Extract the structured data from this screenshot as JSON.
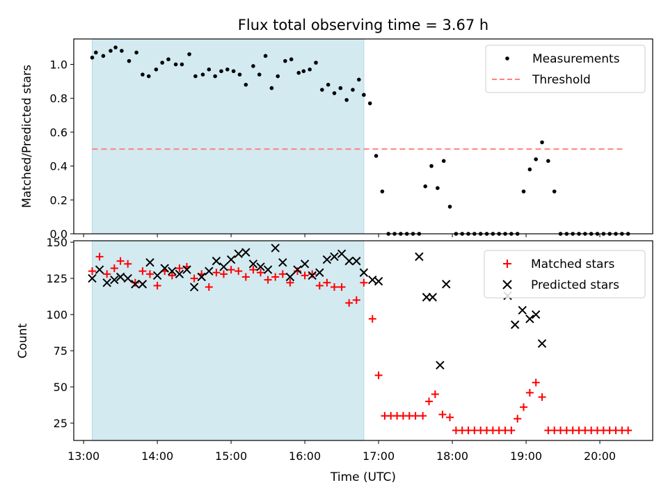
{
  "figure": {
    "title": "Flux total observing time = 3.67 h",
    "xlabel": "Time (UTC)"
  },
  "chart_data": [
    {
      "type": "scatter",
      "panel": "top",
      "ylabel": "Matched/Predicted stars",
      "xlim": [
        "12:52",
        "20:43"
      ],
      "ylim": [
        0.0,
        1.15
      ],
      "yticks": [
        0.0,
        0.2,
        0.4,
        0.6,
        0.8,
        1.0
      ],
      "xticks": [
        "13:00",
        "14:00",
        "15:00",
        "16:00",
        "17:00",
        "18:00",
        "19:00",
        "20:00"
      ],
      "observing_window": {
        "start": "13:07",
        "end": "16:48",
        "color": "#d3eaf1"
      },
      "legend": {
        "position": "top-right"
      },
      "series": [
        {
          "name": "Measurements",
          "color": "#000000",
          "marker": "dot",
          "x": [
            "13:07",
            "13:10",
            "13:16",
            "13:22",
            "13:26",
            "13:31",
            "13:37",
            "13:43",
            "13:48",
            "13:53",
            "13:59",
            "14:04",
            "14:09",
            "14:15",
            "14:20",
            "14:26",
            "14:31",
            "14:37",
            "14:42",
            "14:47",
            "14:52",
            "14:57",
            "15:02",
            "15:07",
            "15:12",
            "15:18",
            "15:23",
            "15:28",
            "15:33",
            "15:38",
            "15:44",
            "15:49",
            "15:55",
            "15:59",
            "16:04",
            "16:09",
            "16:14",
            "16:19",
            "16:24",
            "16:29",
            "16:34",
            "16:39",
            "16:44",
            "16:48",
            "16:53",
            "16:58",
            "17:03",
            "17:08",
            "17:13",
            "17:18",
            "17:23",
            "17:28",
            "17:33",
            "17:38",
            "17:43",
            "17:48",
            "17:53",
            "17:58",
            "18:03",
            "18:08",
            "18:13",
            "18:18",
            "18:23",
            "18:28",
            "18:33",
            "18:38",
            "18:43",
            "18:48",
            "18:53",
            "18:58",
            "19:03",
            "19:08",
            "19:13",
            "19:18",
            "19:23",
            "19:28",
            "19:33",
            "19:38",
            "19:43",
            "19:48",
            "19:53",
            "19:58",
            "20:03",
            "20:08",
            "20:13",
            "20:18",
            "20:23"
          ],
          "y": [
            1.04,
            1.07,
            1.05,
            1.08,
            1.1,
            1.08,
            1.02,
            1.07,
            0.94,
            0.93,
            0.97,
            1.01,
            1.03,
            1.0,
            1.0,
            1.06,
            0.93,
            0.94,
            0.97,
            0.93,
            0.96,
            0.97,
            0.96,
            0.94,
            0.88,
            0.99,
            0.94,
            1.05,
            0.86,
            0.93,
            1.02,
            1.03,
            0.95,
            0.96,
            0.97,
            1.01,
            0.85,
            0.88,
            0.83,
            0.86,
            0.79,
            0.85,
            0.91,
            0.82,
            0.77,
            0.46,
            0.25,
            0.0,
            0.0,
            0.0,
            0.0,
            0.0,
            0.0,
            0.28,
            0.4,
            0.27,
            0.43,
            0.16,
            0.0,
            0.0,
            0.0,
            0.0,
            0.0,
            0.0,
            0.0,
            0.0,
            0.0,
            0.0,
            0.0,
            0.25,
            0.38,
            0.44,
            0.54,
            0.43,
            0.25,
            0.0,
            0.0,
            0.0,
            0.0,
            0.0,
            0.0,
            0.0,
            0.0,
            0.0,
            0.0,
            0.0,
            0.0
          ]
        },
        {
          "name": "Threshold",
          "color": "#ff7f7f",
          "style": "dashed",
          "x": [
            "13:07",
            "20:20"
          ],
          "y": [
            0.5,
            0.5
          ]
        }
      ]
    },
    {
      "type": "scatter",
      "panel": "bottom",
      "ylabel": "Count",
      "xlim": [
        "12:52",
        "20:43"
      ],
      "ylim": [
        13,
        151
      ],
      "yticks": [
        25,
        50,
        75,
        100,
        125,
        150
      ],
      "xticks": [
        "13:00",
        "14:00",
        "15:00",
        "16:00",
        "17:00",
        "18:00",
        "19:00",
        "20:00"
      ],
      "observing_window": {
        "start": "13:07",
        "end": "16:48",
        "color": "#d3eaf1"
      },
      "legend": {
        "position": "top-right"
      },
      "series": [
        {
          "name": "Matched stars",
          "color": "#ff0000",
          "marker": "plus",
          "x": [
            "13:07",
            "13:13",
            "13:19",
            "13:25",
            "13:30",
            "13:36",
            "13:42",
            "13:48",
            "13:54",
            "14:00",
            "14:06",
            "14:12",
            "14:18",
            "14:24",
            "14:30",
            "14:36",
            "14:42",
            "14:48",
            "14:54",
            "15:00",
            "15:06",
            "15:12",
            "15:18",
            "15:24",
            "15:30",
            "15:36",
            "15:42",
            "15:48",
            "15:54",
            "16:00",
            "16:06",
            "16:12",
            "16:18",
            "16:24",
            "16:30",
            "16:36",
            "16:42",
            "16:48",
            "16:55",
            "17:00",
            "17:05",
            "17:10",
            "17:15",
            "17:20",
            "17:25",
            "17:30",
            "17:36",
            "17:41",
            "17:46",
            "17:52",
            "17:58",
            "18:03",
            "18:08",
            "18:13",
            "18:18",
            "18:23",
            "18:28",
            "18:33",
            "18:38",
            "18:43",
            "18:48",
            "18:53",
            "18:58",
            "19:03",
            "19:08",
            "19:13",
            "19:18",
            "19:23",
            "19:28",
            "19:33",
            "19:38",
            "19:43",
            "19:48",
            "19:53",
            "19:58",
            "20:03",
            "20:08",
            "20:13",
            "20:18",
            "20:23"
          ],
          "y": [
            130,
            140,
            128,
            132,
            137,
            135,
            122,
            130,
            128,
            120,
            130,
            127,
            132,
            133,
            125,
            128,
            119,
            129,
            128,
            131,
            130,
            126,
            131,
            129,
            124,
            126,
            128,
            122,
            130,
            127,
            128,
            120,
            122,
            119,
            119,
            108,
            110,
            122,
            97,
            58,
            30,
            30,
            30,
            30,
            30,
            30,
            30,
            40,
            45,
            31,
            29,
            20,
            20,
            20,
            20,
            20,
            20,
            20,
            20,
            20,
            20,
            28,
            36,
            46,
            53,
            43,
            20,
            20,
            20,
            20,
            20,
            20,
            20,
            20,
            20,
            20,
            20,
            20,
            20,
            20
          ]
        },
        {
          "name": "Predicted stars",
          "color": "#000000",
          "marker": "x",
          "x": [
            "13:07",
            "13:13",
            "13:19",
            "13:25",
            "13:30",
            "13:36",
            "13:42",
            "13:48",
            "13:54",
            "14:00",
            "14:06",
            "14:12",
            "14:18",
            "14:24",
            "14:30",
            "14:36",
            "14:42",
            "14:48",
            "14:54",
            "15:00",
            "15:06",
            "15:12",
            "15:18",
            "15:24",
            "15:30",
            "15:36",
            "15:42",
            "15:48",
            "15:54",
            "16:00",
            "16:06",
            "16:12",
            "16:18",
            "16:24",
            "16:30",
            "16:36",
            "16:42",
            "16:48",
            "16:55",
            "17:00",
            "17:33",
            "17:39",
            "17:44",
            "17:50",
            "17:55",
            "18:45",
            "18:51",
            "18:57",
            "19:03",
            "19:08",
            "19:13"
          ],
          "y": [
            125,
            131,
            122,
            124,
            126,
            125,
            121,
            121,
            136,
            127,
            132,
            130,
            128,
            131,
            119,
            126,
            130,
            137,
            133,
            138,
            142,
            143,
            135,
            133,
            131,
            146,
            136,
            126,
            131,
            135,
            127,
            129,
            138,
            140,
            142,
            137,
            137,
            129,
            124,
            123,
            140,
            112,
            112,
            65,
            121,
            113,
            93,
            103,
            97,
            100,
            80
          ]
        }
      ]
    }
  ]
}
